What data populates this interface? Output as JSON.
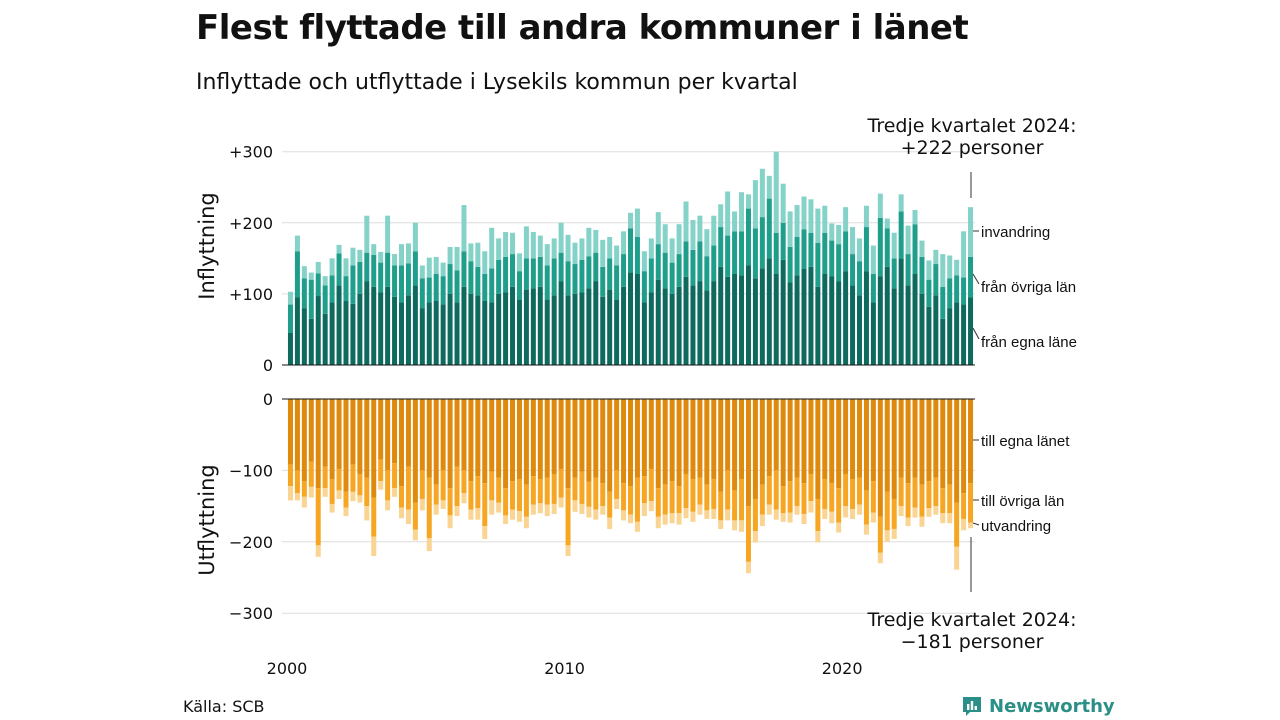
{
  "title": "Flest flyttade till andra kommuner i länet",
  "subtitle": "Inflyttade och utflyttade i Lysekils kommun per kvartal",
  "source": "Källa: SCB",
  "brand": {
    "name": "Newsworthy",
    "icon": "newsworthy-logo-icon"
  },
  "colors": {
    "in_own": "#0e6a5e",
    "in_other": "#1f9e8c",
    "in_immig": "#84d2c8",
    "out_own": "#df8a0c",
    "out_other": "#f6a623",
    "out_emig": "#f9d492",
    "grid": "#dddddd"
  },
  "annotations": {
    "top_line1": "Tredje kvartalet 2024:",
    "top_line2": "+222 personer",
    "bottom_line1": "Tredje kvartalet 2024:",
    "bottom_line2": "−181 personer"
  },
  "chart_data": [
    {
      "type": "bar",
      "stacked": true,
      "ylabel": "Inflyttning",
      "ylim": [
        0,
        300
      ],
      "yticks": [
        {
          "value": 300,
          "label": "+300"
        },
        {
          "value": 200,
          "label": "+200"
        },
        {
          "value": 100,
          "label": "+100"
        },
        {
          "value": 0,
          "label": "0"
        }
      ],
      "x_start": "2000 Q1",
      "x_end": "2024 Q3",
      "xticks": [
        {
          "value": 2000,
          "label": "2000"
        },
        {
          "value": 2010,
          "label": "2010"
        },
        {
          "value": 2020,
          "label": "2020"
        }
      ],
      "series": [
        {
          "name": "från egna läne",
          "values": [
            45,
            95,
            80,
            65,
            97,
            72,
            88,
            112,
            90,
            86,
            100,
            118,
            110,
            102,
            110,
            96,
            88,
            98,
            112,
            80,
            88,
            90,
            85,
            100,
            88,
            110,
            100,
            98,
            90,
            88,
            100,
            102,
            110,
            92,
            106,
            108,
            110,
            92,
            98,
            118,
            98,
            100,
            102,
            108,
            118,
            96,
            106,
            92,
            110,
            130,
            128,
            88,
            102,
            120,
            108,
            100,
            110,
            124,
            112,
            118,
            105,
            118,
            138,
            124,
            128,
            126,
            140,
            122,
            136,
            150,
            128,
            148,
            116,
            126,
            135,
            138,
            110,
            128,
            125,
            118,
            132,
            112,
            98,
            132,
            88,
            125,
            138,
            108,
            150,
            112,
            128,
            100,
            82,
            98,
            65,
            80,
            88,
            85,
            95
          ]
        },
        {
          "name": "från övriga län",
          "values": [
            40,
            65,
            42,
            55,
            32,
            40,
            38,
            45,
            35,
            54,
            45,
            40,
            45,
            42,
            48,
            44,
            52,
            45,
            48,
            42,
            35,
            38,
            40,
            42,
            45,
            50,
            46,
            40,
            38,
            48,
            48,
            50,
            46,
            40,
            44,
            42,
            42,
            48,
            52,
            40,
            48,
            42,
            46,
            45,
            40,
            42,
            44,
            48,
            46,
            62,
            52,
            44,
            48,
            50,
            50,
            44,
            46,
            50,
            50,
            56,
            48,
            50,
            56,
            58,
            60,
            62,
            80,
            70,
            72,
            84,
            58,
            52,
            50,
            54,
            56,
            48,
            62,
            58,
            50,
            52,
            56,
            44,
            48,
            62,
            40,
            82,
            54,
            42,
            66,
            44,
            70,
            52,
            38,
            44,
            45,
            42,
            38,
            38,
            57
          ]
        },
        {
          "name": "invandring",
          "values": [
            18,
            22,
            17,
            10,
            16,
            13,
            24,
            12,
            25,
            25,
            17,
            52,
            15,
            15,
            52,
            16,
            30,
            28,
            40,
            18,
            28,
            24,
            19,
            24,
            33,
            65,
            25,
            34,
            32,
            57,
            30,
            35,
            30,
            25,
            45,
            37,
            30,
            30,
            28,
            42,
            37,
            30,
            30,
            40,
            32,
            38,
            30,
            28,
            32,
            22,
            40,
            28,
            28,
            45,
            40,
            34,
            42,
            56,
            42,
            36,
            38,
            42,
            32,
            62,
            28,
            55,
            20,
            68,
            68,
            32,
            114,
            55,
            50,
            45,
            46,
            47,
            48,
            38,
            24,
            27,
            34,
            38,
            32,
            30,
            40,
            34,
            14,
            36,
            24,
            40,
            20,
            23,
            27,
            20,
            46,
            32,
            22,
            65,
            70
          ]
        }
      ]
    },
    {
      "type": "bar",
      "stacked": true,
      "ylabel": "Utflyttning",
      "ylim": [
        -300,
        0
      ],
      "yticks": [
        {
          "value": 0,
          "label": "0"
        },
        {
          "value": -100,
          "label": "−100"
        },
        {
          "value": -200,
          "label": "−200"
        },
        {
          "value": -300,
          "label": "−300"
        }
      ],
      "x_start": "2000 Q1",
      "x_end": "2024 Q3",
      "xticks": [
        {
          "value": 2000,
          "label": "2000"
        },
        {
          "value": 2010,
          "label": "2010"
        },
        {
          "value": 2020,
          "label": "2020"
        }
      ],
      "series": [
        {
          "name": "till egna länet",
          "values": [
            -92,
            -100,
            -115,
            -88,
            -125,
            -95,
            -112,
            -98,
            -130,
            -92,
            -105,
            -110,
            -138,
            -85,
            -100,
            -90,
            -122,
            -95,
            -145,
            -100,
            -110,
            -120,
            -100,
            -125,
            -95,
            -100,
            -115,
            -108,
            -118,
            -102,
            -110,
            -125,
            -115,
            -112,
            -120,
            -108,
            -112,
            -110,
            -105,
            -98,
            -125,
            -110,
            -102,
            -116,
            -110,
            -118,
            -130,
            -100,
            -118,
            -122,
            -110,
            -108,
            -98,
            -125,
            -120,
            -115,
            -122,
            -105,
            -112,
            -110,
            -120,
            -112,
            -130,
            -100,
            -128,
            -112,
            -150,
            -140,
            -120,
            -108,
            -100,
            -122,
            -115,
            -110,
            -118,
            -105,
            -140,
            -112,
            -118,
            -125,
            -105,
            -112,
            -110,
            -128,
            -115,
            -165,
            -130,
            -140,
            -110,
            -118,
            -110,
            -120,
            -115,
            -110,
            -125,
            -120,
            -145,
            -132,
            -118
          ]
        },
        {
          "name": "till övriga län",
          "values": [
            -30,
            -32,
            -22,
            -35,
            -80,
            -30,
            -35,
            -30,
            -22,
            -38,
            -30,
            -40,
            -55,
            -30,
            -42,
            -35,
            -30,
            -60,
            -38,
            -40,
            -85,
            -28,
            -42,
            -38,
            -55,
            -32,
            -40,
            -45,
            -60,
            -40,
            -35,
            -38,
            -40,
            -45,
            -45,
            -40,
            -34,
            -38,
            -42,
            -40,
            -80,
            -32,
            -45,
            -35,
            -45,
            -32,
            -36,
            -40,
            -38,
            -40,
            -62,
            -38,
            -45,
            -40,
            -42,
            -45,
            -38,
            -48,
            -46,
            -38,
            -36,
            -42,
            -40,
            -55,
            -42,
            -58,
            -78,
            -45,
            -42,
            -40,
            -55,
            -38,
            -44,
            -40,
            -43,
            -38,
            -45,
            -42,
            -40,
            -48,
            -45,
            -42,
            -38,
            -48,
            -44,
            -50,
            -54,
            -42,
            -40,
            -48,
            -42,
            -45,
            -38,
            -40,
            -35,
            -40,
            -62,
            -36,
            -55
          ]
        },
        {
          "name": "utvandring",
          "values": [
            -20,
            -10,
            -15,
            -15,
            -16,
            -12,
            -12,
            -12,
            -12,
            -13,
            -10,
            -20,
            -27,
            -12,
            -14,
            -12,
            -15,
            -20,
            -15,
            -16,
            -18,
            -14,
            -12,
            -18,
            -14,
            -14,
            -14,
            -16,
            -18,
            -20,
            -14,
            -12,
            -14,
            -15,
            -16,
            -14,
            -14,
            -16,
            -14,
            -14,
            -15,
            -16,
            -14,
            -15,
            -14,
            -12,
            -16,
            -14,
            -14,
            -12,
            -14,
            -18,
            -14,
            -16,
            -14,
            -14,
            -16,
            -14,
            -14,
            -14,
            -12,
            -14,
            -12,
            -15,
            -14,
            -16,
            -16,
            -16,
            -16,
            -14,
            -14,
            -12,
            -14,
            -12,
            -14,
            -16,
            -16,
            -14,
            -16,
            -14,
            -16,
            -14,
            -14,
            -14,
            -14,
            -15,
            -16,
            -14,
            -14,
            -12,
            -14,
            -14,
            -12,
            -12,
            -14,
            -14,
            -32,
            -16,
            -8
          ]
        }
      ]
    }
  ]
}
